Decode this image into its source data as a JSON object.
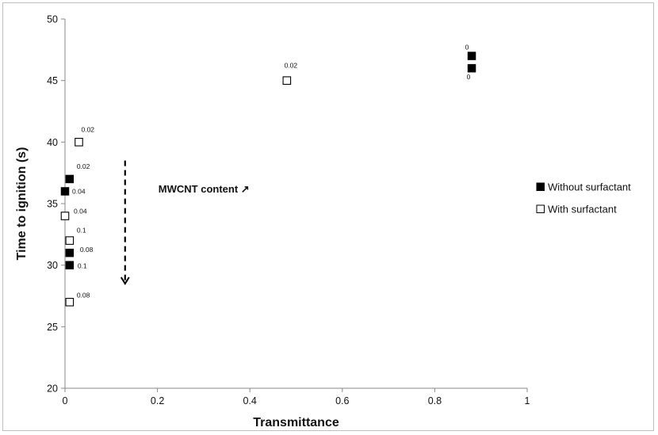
{
  "chart_data": {
    "type": "scatter",
    "title": "",
    "xlabel": "Transmittance",
    "ylabel": "Time to ignition (s)",
    "xlim": [
      0,
      1
    ],
    "ylim": [
      20,
      50
    ],
    "xticks": [
      "0",
      "0.2",
      "0.4",
      "0.6",
      "0.8",
      "1"
    ],
    "yticks": [
      "20",
      "25",
      "30",
      "35",
      "40",
      "45",
      "50"
    ],
    "grid": false,
    "legend_position": "right",
    "series": [
      {
        "name": "Without surfactant",
        "marker": "filled-square",
        "color": "#000000",
        "points": [
          {
            "x": 0.88,
            "y": 47,
            "label": "0"
          },
          {
            "x": 0.88,
            "y": 46,
            "label": "0"
          },
          {
            "x": 0.01,
            "y": 37,
            "label": "0.02"
          },
          {
            "x": 0.0,
            "y": 36,
            "label": "0.04"
          },
          {
            "x": 0.01,
            "y": 31,
            "label": "0.08"
          },
          {
            "x": 0.01,
            "y": 30,
            "label": "0.1"
          }
        ]
      },
      {
        "name": "With surfactant",
        "marker": "open-square",
        "color": "#000000",
        "points": [
          {
            "x": 0.48,
            "y": 45,
            "label": "0.02"
          },
          {
            "x": 0.03,
            "y": 40,
            "label": "0.02"
          },
          {
            "x": 0.0,
            "y": 34,
            "label": "0.04"
          },
          {
            "x": 0.01,
            "y": 32,
            "label": "0.1"
          },
          {
            "x": 0.01,
            "y": 27,
            "label": "0.08"
          }
        ]
      }
    ],
    "annotation": {
      "text": "MWCNT content ↗",
      "arrow": {
        "x": 0.13,
        "y_from": 38.5,
        "y_to": 28.5,
        "style": "dashed",
        "direction": "down"
      }
    }
  }
}
